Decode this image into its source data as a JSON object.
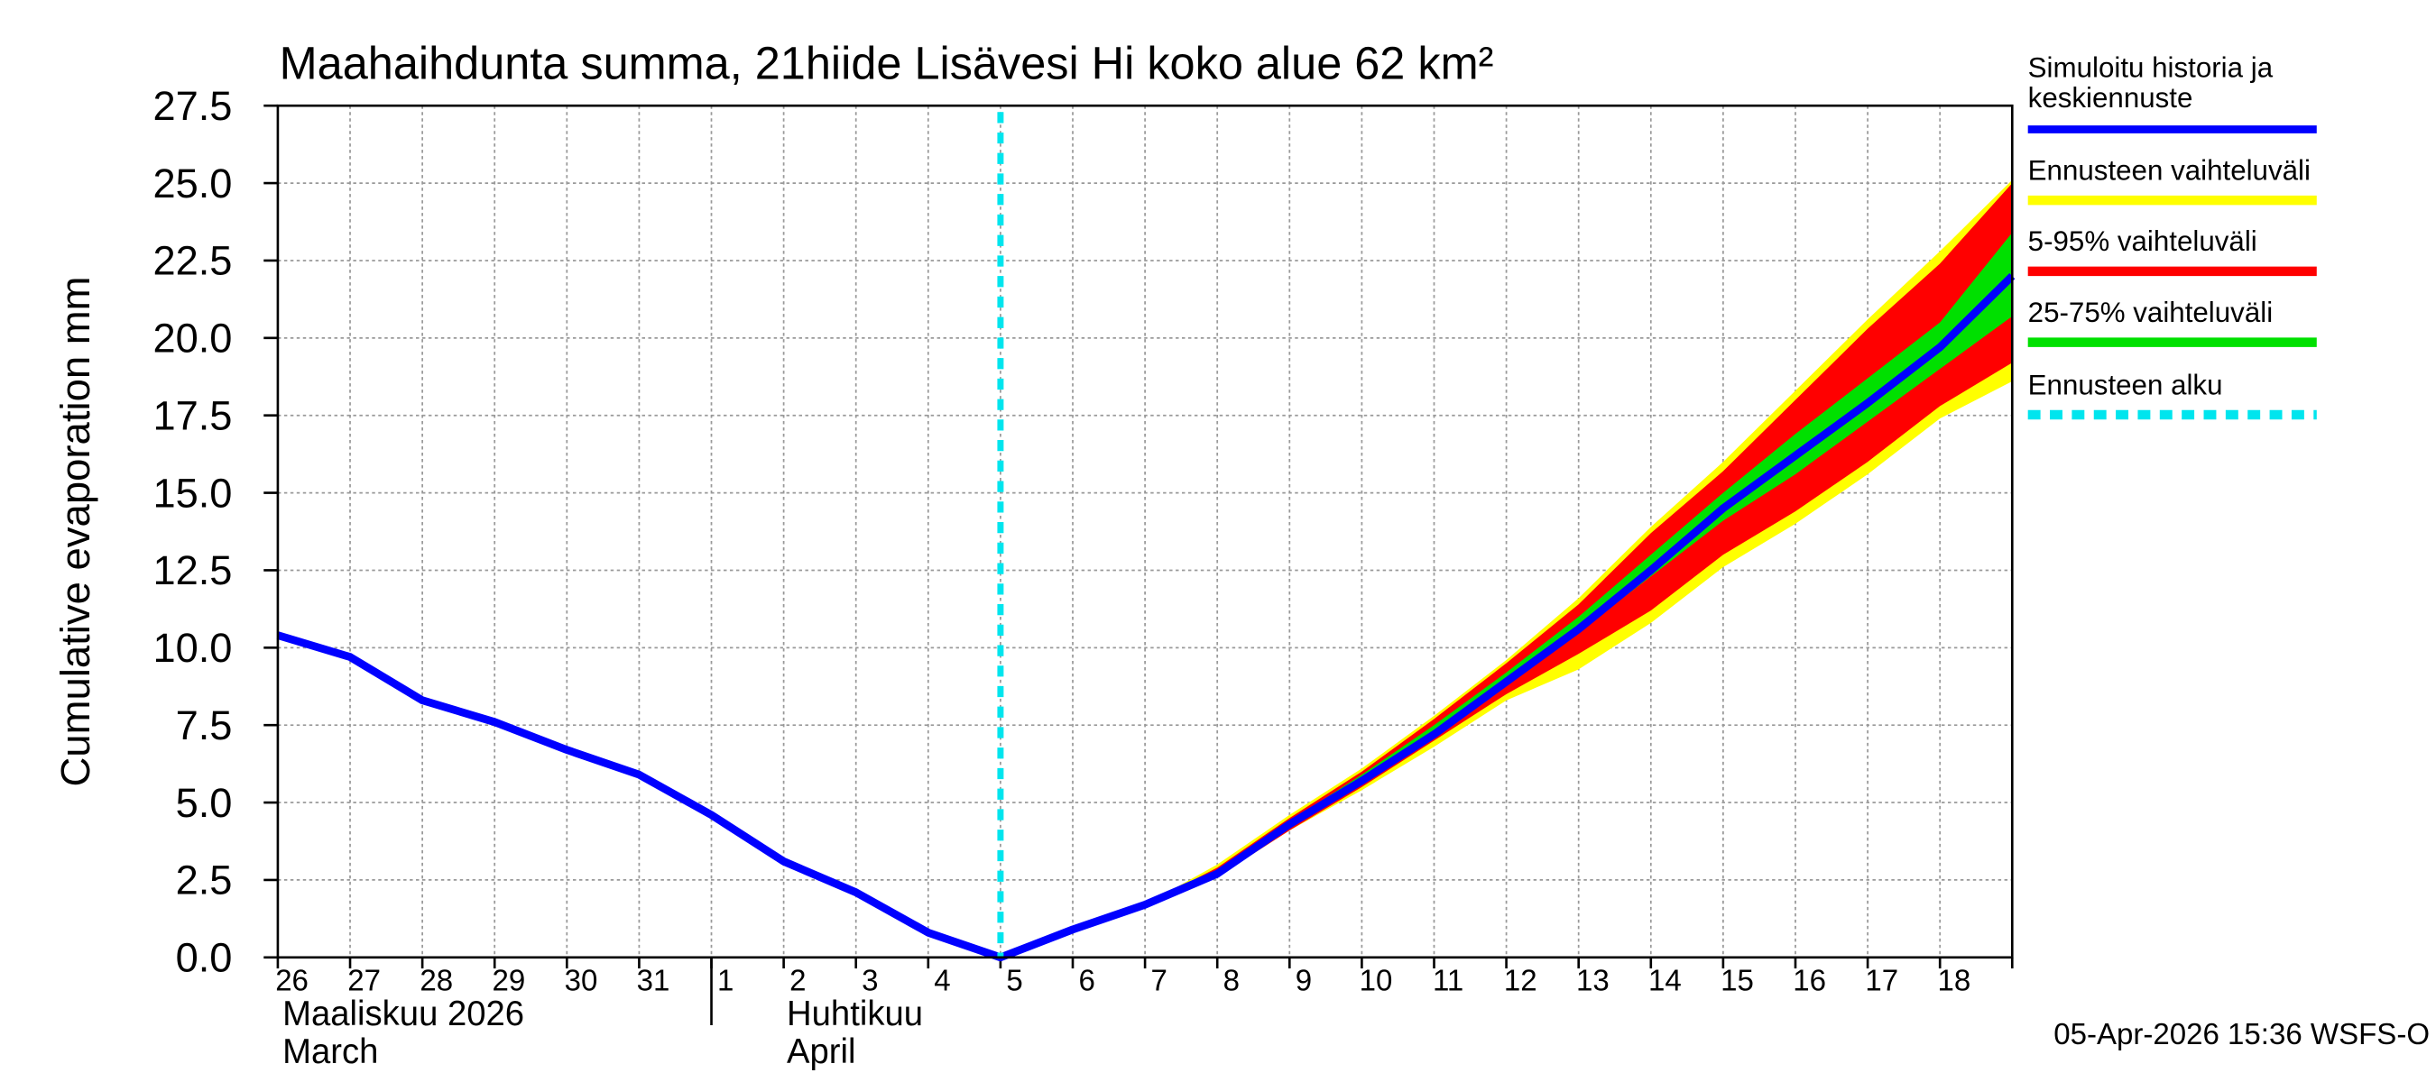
{
  "chart_data": {
    "type": "band-line",
    "title": "Maahaihdunta summa, 21hiide Lisävesi Hi koko alue 62 km²",
    "y_label": "Cumulative evaporation   mm",
    "footer": "05-Apr-2026 15:36 WSFS-O",
    "categories": [
      "26",
      "27",
      "28",
      "29",
      "30",
      "31",
      "1",
      "2",
      "3",
      "4",
      "5",
      "6",
      "7",
      "8",
      "9",
      "10",
      "11",
      "12",
      "13",
      "14",
      "15",
      "16",
      "17",
      "18",
      null
    ],
    "months": [
      {
        "start": "26",
        "lines": [
          "Maaliskuu 2026",
          "March"
        ]
      },
      {
        "start": "1",
        "lines": [
          "Huhtikuu",
          "April"
        ]
      }
    ],
    "ylim": [
      0,
      27.5
    ],
    "yticks": [
      {
        "value": 0,
        "label": "0.0"
      },
      {
        "value": 2.5,
        "label": "2.5"
      },
      {
        "value": 5,
        "label": "5.0"
      },
      {
        "value": 7.5,
        "label": "7.5"
      },
      {
        "value": 10,
        "label": "10.0"
      },
      {
        "value": 12.5,
        "label": "12.5"
      },
      {
        "value": 15,
        "label": "15.0"
      },
      {
        "value": 17.5,
        "label": "17.5"
      },
      {
        "value": 20,
        "label": "20.0"
      },
      {
        "value": 22.5,
        "label": "22.5"
      },
      {
        "value": 25,
        "label": "25.0"
      },
      {
        "value": 27.5,
        "label": "27.5"
      }
    ],
    "grid": true,
    "series": [
      {
        "name": [
          "Simuloitu historia ja",
          "keskiennuste"
        ],
        "kind": "line",
        "color": "#0000ff",
        "values": [
          10.4,
          9.7,
          8.3,
          7.6,
          6.7,
          5.9,
          4.6,
          3.1,
          2.1,
          0.8,
          0,
          0.9,
          1.7,
          2.7,
          4.3,
          5.7,
          7.2,
          8.9,
          10.6,
          12.5,
          14.5,
          16.2,
          17.9,
          19.7,
          22.0
        ]
      },
      {
        "name": "Ennusteen vaihteluväli",
        "kind": "band",
        "color": "#ffff00",
        "upper": [
          null,
          null,
          null,
          null,
          null,
          null,
          null,
          null,
          null,
          null,
          0,
          0.9,
          1.7,
          3.0,
          4.6,
          6.1,
          7.8,
          9.6,
          11.6,
          13.9,
          16.0,
          18.3,
          20.6,
          22.8,
          25.1
        ],
        "lower": [
          null,
          null,
          null,
          null,
          null,
          null,
          null,
          null,
          null,
          null,
          0,
          0.9,
          1.6,
          2.6,
          4.1,
          5.4,
          6.8,
          8.3,
          9.3,
          10.8,
          12.6,
          14.0,
          15.6,
          17.4,
          18.6
        ]
      },
      {
        "name": "5-95% vaihteluväli",
        "kind": "band",
        "color": "#ff0000",
        "upper": [
          null,
          null,
          null,
          null,
          null,
          null,
          null,
          null,
          null,
          null,
          null,
          null,
          1.7,
          2.9,
          4.5,
          6.0,
          7.7,
          9.5,
          11.4,
          13.7,
          15.7,
          18.0,
          20.3,
          22.4,
          25.0
        ],
        "lower": [
          null,
          null,
          null,
          null,
          null,
          null,
          null,
          null,
          null,
          null,
          null,
          null,
          1.7,
          2.6,
          4.1,
          5.5,
          7.0,
          8.5,
          9.8,
          11.2,
          13.0,
          14.4,
          16.0,
          17.8,
          19.2
        ]
      },
      {
        "name": "25-75% vaihteluväli",
        "kind": "band",
        "color": "#00e000",
        "upper": [
          null,
          null,
          null,
          null,
          null,
          null,
          null,
          null,
          null,
          null,
          null,
          null,
          1.7,
          2.7,
          4.4,
          5.9,
          7.5,
          9.2,
          11.0,
          13.0,
          15.0,
          16.9,
          18.7,
          20.5,
          23.4
        ],
        "lower": [
          null,
          null,
          null,
          null,
          null,
          null,
          null,
          null,
          null,
          null,
          null,
          null,
          1.7,
          2.7,
          4.3,
          5.7,
          7.1,
          8.8,
          10.5,
          12.3,
          14.1,
          15.6,
          17.3,
          19.0,
          20.7
        ]
      },
      {
        "name": "Ennusteen alku",
        "kind": "vline",
        "color": "#00e5ee",
        "at": "5"
      }
    ]
  }
}
